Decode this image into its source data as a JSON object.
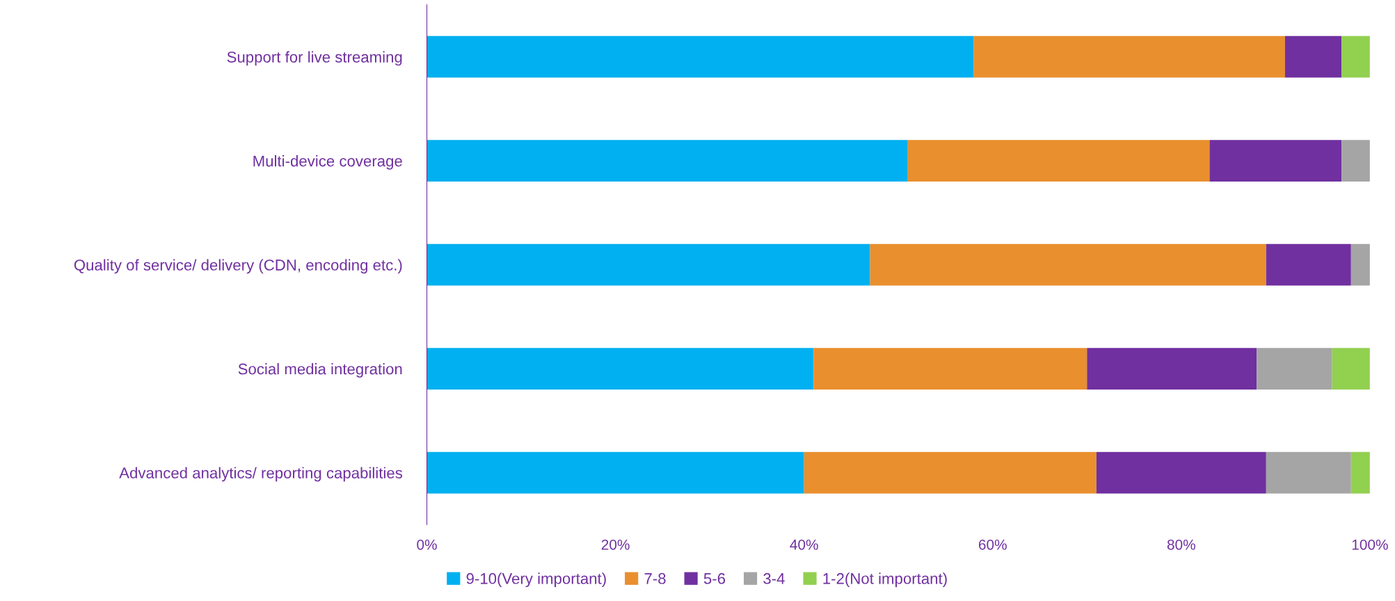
{
  "chart_data": {
    "type": "bar",
    "orientation": "horizontal",
    "stacked": true,
    "categories": [
      "Support for live streaming",
      "Multi-device coverage",
      "Quality of service/ delivery (CDN, encoding etc.)",
      "Social media integration",
      "Advanced analytics/ reporting capabilities"
    ],
    "series": [
      {
        "name": "9-10(Very important)",
        "color": "#00b0f0",
        "values": [
          58,
          51,
          47,
          41,
          40
        ]
      },
      {
        "name": "7-8",
        "color": "#e98f2e",
        "values": [
          33,
          32,
          42,
          29,
          31
        ]
      },
      {
        "name": "5-6",
        "color": "#7030a0",
        "values": [
          6,
          14,
          9,
          18,
          18
        ]
      },
      {
        "name": "3-4",
        "color": "#a5a5a5",
        "values": [
          0,
          3,
          2,
          8,
          9
        ]
      },
      {
        "name": "1-2(Not important)",
        "color": "#92d050",
        "values": [
          3,
          0,
          0,
          4,
          2
        ]
      }
    ],
    "xlim": [
      0,
      100
    ],
    "xticks": [
      {
        "value": 0,
        "label": "0%"
      },
      {
        "value": 20,
        "label": "20%"
      },
      {
        "value": 40,
        "label": "40%"
      },
      {
        "value": 60,
        "label": "60%"
      },
      {
        "value": 80,
        "label": "80%"
      },
      {
        "value": 100,
        "label": "100%"
      }
    ],
    "grid": false,
    "legend": "bottom"
  }
}
